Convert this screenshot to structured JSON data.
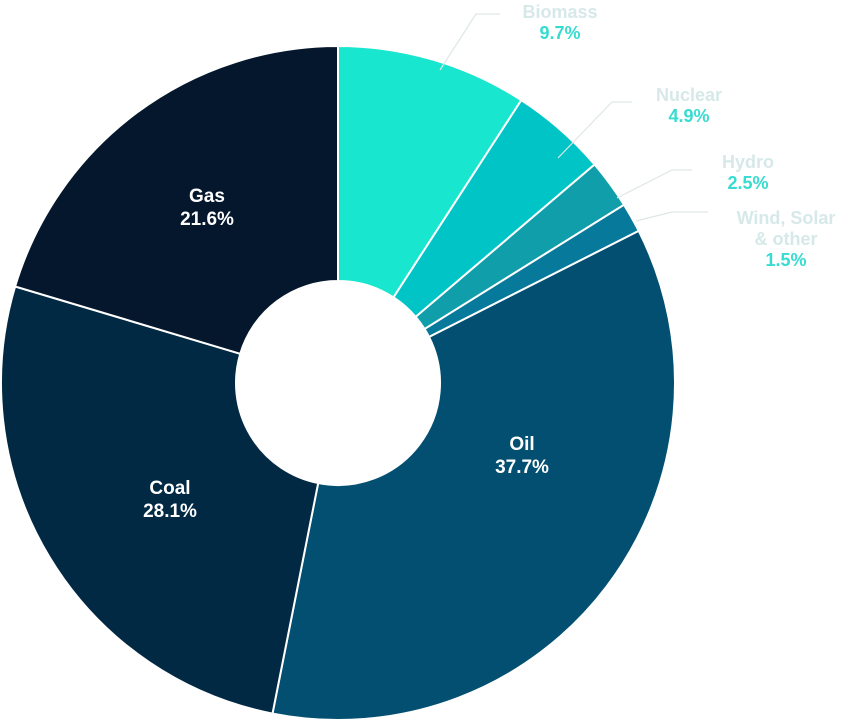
{
  "colors": {
    "background": "#ffffff",
    "inner_label": "#ffffff",
    "outer_label_name": "#d6e9e8",
    "outer_label_value": "#37dcd0"
  },
  "chart_data": {
    "type": "pie",
    "donut": true,
    "title": "",
    "legend": "none",
    "slices": [
      {
        "label": "Biomass",
        "value": 9.7,
        "display": "9.7%",
        "color": "#19e6cf",
        "label_position": "outside"
      },
      {
        "label": "Nuclear",
        "value": 4.9,
        "display": "4.9%",
        "color": "#00c4c6",
        "label_position": "outside"
      },
      {
        "label": "Hydro",
        "value": 2.5,
        "display": "2.5%",
        "color": "#109eab",
        "label_position": "outside"
      },
      {
        "label": "Wind, Solar & other",
        "label_lines": [
          "Wind, Solar",
          "& other"
        ],
        "value": 1.5,
        "display": "1.5%",
        "color": "#07799a",
        "label_position": "outside"
      },
      {
        "label": "Oil",
        "value": 37.7,
        "display": "37.7%",
        "color": "#024f71",
        "label_position": "inside"
      },
      {
        "label": "Coal",
        "value": 28.1,
        "display": "28.1%",
        "color": "#022944",
        "label_position": "inside"
      },
      {
        "label": "Gas",
        "value": 21.6,
        "display": "21.6%",
        "color": "#04172c",
        "label_position": "inside"
      }
    ]
  }
}
